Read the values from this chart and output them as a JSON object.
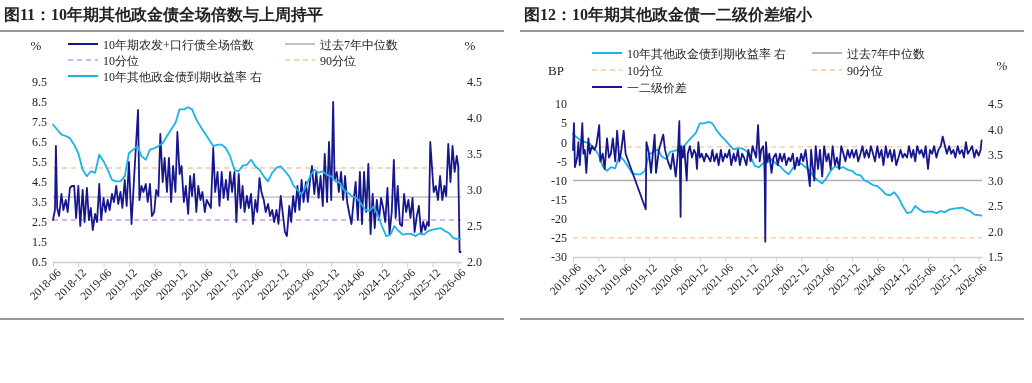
{
  "chart_data": [
    {
      "type": "line",
      "title": "图11：10年期其他政金债全场倍数与上周持平",
      "ylabel": "%",
      "y2label": "%",
      "legend": "top",
      "line_style": "solid",
      "marker": "none",
      "xlim": [
        "2018-06-01",
        "2026-06-25"
      ],
      "xticks": [
        {
          "value": "2018-06-01",
          "label": "2018-06"
        },
        {
          "value": "2018-12-01",
          "label": "2018-12"
        },
        {
          "value": "2019-06-01",
          "label": "2019-06"
        },
        {
          "value": "2019-12-01",
          "label": "2019-12"
        },
        {
          "value": "2020-06-01",
          "label": "2020-06"
        },
        {
          "value": "2020-12-01",
          "label": "2020-12"
        },
        {
          "value": "2021-06-01",
          "label": "2021-06"
        },
        {
          "value": "2021-12-01",
          "label": "2021-12"
        },
        {
          "value": "2022-06-01",
          "label": "2022-06"
        },
        {
          "value": "2022-12-01",
          "label": "2022-12"
        },
        {
          "value": "2023-06-01",
          "label": "2023-06"
        },
        {
          "value": "2023-12-01",
          "label": "2023-12"
        },
        {
          "value": "2024-06-01",
          "label": "2024-06"
        },
        {
          "value": "2024-12-01",
          "label": "2024-12"
        },
        {
          "value": "2025-06-01",
          "label": "2025-06"
        },
        {
          "value": "2025-12-01",
          "label": "2025-12"
        },
        {
          "value": "2026-06-01",
          "label": "2026-06"
        }
      ],
      "ylim": [
        0.5,
        9.5
      ],
      "yticks": [
        0.5,
        1.5,
        2.5,
        3.5,
        4.5,
        5.5,
        6.5,
        7.5,
        8.5,
        9.5
      ],
      "y2lim": [
        2.0,
        4.5
      ],
      "y2ticks": [
        {
          "value": 2,
          "label": "2.0"
        },
        2.5,
        {
          "value": 3,
          "label": "3.0"
        },
        3.5,
        {
          "value": 4,
          "label": "4.0"
        },
        4.5
      ],
      "ref_lines": [
        {
          "axis": "y",
          "value": 3.75,
          "label": "过去7年中位数",
          "color": "#c0c0c0",
          "line_style": "solid"
        },
        {
          "axis": "y",
          "value": 2.6,
          "label": "10分位",
          "color": "#c99cf2",
          "line_style": "dashed"
        },
        {
          "axis": "y",
          "value": 5.2,
          "label": "90分位",
          "color": "#f9c6a0",
          "line_style": "dashed"
        }
      ],
      "series": [
        {
          "name": "10年期农发+口行债全场倍数",
          "color": "#16168e",
          "x": [
            "2018-06-01",
            "2018-06-15",
            "2018-06-22",
            "2018-07-01",
            "2018-07-15",
            "2018-08-01",
            "2018-08-15",
            "2018-09-01",
            "2018-09-15",
            "2018-10-01",
            "2018-10-15",
            "2018-11-01",
            "2018-11-15",
            "2018-12-01",
            "2018-12-15",
            "2019-01-01",
            "2019-01-15",
            "2019-02-01",
            "2019-02-15",
            "2019-03-01",
            "2019-03-15",
            "2019-04-01",
            "2019-04-15",
            "2019-05-01",
            "2019-05-15",
            "2019-06-01",
            "2019-06-15",
            "2019-07-01",
            "2019-07-15",
            "2019-08-01",
            "2019-08-15",
            "2019-09-01",
            "2019-09-15",
            "2019-10-01",
            "2019-10-15",
            "2019-11-01",
            "2019-11-15",
            "2019-12-01",
            "2019-12-20",
            "2020-01-10",
            "2020-02-05",
            "2020-02-15",
            "2020-03-01",
            "2020-03-15",
            "2020-04-01",
            "2020-04-15",
            "2020-05-01",
            "2020-05-15",
            "2020-06-01",
            "2020-06-15",
            "2020-07-01",
            "2020-07-15",
            "2020-08-01",
            "2020-08-15",
            "2020-09-01",
            "2020-09-15",
            "2020-10-01",
            "2020-10-15",
            "2020-11-01",
            "2020-11-15",
            "2020-12-01",
            "2020-12-15",
            "2021-01-01",
            "2021-01-15",
            "2021-02-01",
            "2021-02-15",
            "2021-03-01",
            "2021-03-15",
            "2021-04-01",
            "2021-04-15",
            "2021-05-01",
            "2021-05-15",
            "2021-06-01",
            "2021-06-15",
            "2021-07-15",
            "2021-08-01",
            "2021-08-15",
            "2021-09-01",
            "2021-09-15",
            "2021-10-01",
            "2021-10-15",
            "2021-11-01",
            "2021-11-15",
            "2021-12-01",
            "2021-12-15",
            "2022-01-01",
            "2022-01-15",
            "2022-02-01",
            "2022-02-15",
            "2022-03-01",
            "2022-03-15",
            "2022-04-01",
            "2022-04-15",
            "2022-05-01",
            "2022-05-15",
            "2022-06-01",
            "2022-06-15",
            "2022-07-01",
            "2022-07-15",
            "2022-08-01",
            "2022-08-15",
            "2022-09-01",
            "2022-09-15",
            "2022-10-01",
            "2022-10-15",
            "2022-11-01",
            "2022-11-15",
            "2022-12-01",
            "2022-12-15",
            "2023-01-01",
            "2023-01-15",
            "2023-02-01",
            "2023-02-15",
            "2023-03-01",
            "2023-03-15",
            "2023-04-01",
            "2023-04-15",
            "2023-05-01",
            "2023-05-15",
            "2023-06-01",
            "2023-06-15",
            "2023-07-01",
            "2023-07-15",
            "2023-08-01",
            "2023-08-15",
            "2023-09-01",
            "2023-09-15",
            "2023-10-01",
            "2023-10-15",
            "2023-11-01",
            "2023-11-15",
            "2023-12-01",
            "2023-12-15",
            "2023-12-25",
            "2024-01-10",
            "2024-01-25",
            "2024-02-10",
            "2024-02-25",
            "2024-03-10",
            "2024-03-25",
            "2024-04-10",
            "2024-04-25",
            "2024-05-10",
            "2024-05-25",
            "2024-06-10",
            "2024-06-25",
            "2024-07-10",
            "2024-07-25",
            "2024-08-10",
            "2024-08-25",
            "2024-09-10",
            "2024-09-25",
            "2024-10-10",
            "2024-10-25",
            "2024-11-10",
            "2024-11-25",
            "2024-12-10",
            "2024-12-25",
            "2025-01-10",
            "2025-01-25",
            "2025-02-10",
            "2025-02-25",
            "2025-03-10",
            "2025-03-25",
            "2025-04-10",
            "2025-04-25",
            "2025-05-10",
            "2025-05-25",
            "2025-06-10",
            "2025-06-25",
            "2025-07-10",
            "2025-07-25",
            "2025-08-10",
            "2025-08-25",
            "2025-09-10",
            "2025-09-25",
            "2025-10-10",
            "2025-10-25",
            "2025-11-05",
            "2025-11-15",
            "2025-12-10",
            "2025-12-25",
            "2026-01-10",
            "2026-01-25",
            "2026-02-10",
            "2026-02-25",
            "2026-03-10",
            "2026-03-25",
            "2026-04-10",
            "2026-04-25",
            "2026-05-10",
            "2026-05-25",
            "2026-06-05",
            "2026-06-15",
            "2026-06-22"
          ],
          "values": [
            2.6,
            3.1,
            6.3,
            3.2,
            2.8,
            3.9,
            3.1,
            3.6,
            3.0,
            4.2,
            4.3,
            4.3,
            2.7,
            4.3,
            2.3,
            4.1,
            2.5,
            4.2,
            2.6,
            3.2,
            2.1,
            2.9,
            2.5,
            4.4,
            2.6,
            3.7,
            3.0,
            3.6,
            3.1,
            3.9,
            3.5,
            4.3,
            3.4,
            4.0,
            3.2,
            4.6,
            3.3,
            5.5,
            2.4,
            5.0,
            8.1,
            3.6,
            4.3,
            4.0,
            4.4,
            3.5,
            4.4,
            2.8,
            3.0,
            4.1,
            3.8,
            6.9,
            4.5,
            5.7,
            4.0,
            5.7,
            3.5,
            5.3,
            4.0,
            7.0,
            4.9,
            5.3,
            3.5,
            4.3,
            2.9,
            4.8,
            3.8,
            4.9,
            3.0,
            4.3,
            3.6,
            4.0,
            3.0,
            3.6,
            3.2,
            6.2,
            4.0,
            5.0,
            3.3,
            5.0,
            3.7,
            4.6,
            3.6,
            5.0,
            4.0,
            5.0,
            2.5,
            4.9,
            3.2,
            4.3,
            3.0,
            3.8,
            3.2,
            3.9,
            2.4,
            3.6,
            3.0,
            4.7,
            4.0,
            3.6,
            3.0,
            3.4,
            2.8,
            3.1,
            2.5,
            3.1,
            2.4,
            3.8,
            3.0,
            2.0,
            1.8,
            3.3,
            2.5,
            3.8,
            3.0,
            4.3,
            3.1,
            4.6,
            3.5,
            4.5,
            3.5,
            4.6,
            5.3,
            3.9,
            5.0,
            3.7,
            4.8,
            3.3,
            5.9,
            3.5,
            6.5,
            3.6,
            8.5,
            4.6,
            5.0,
            4.0,
            5.0,
            3.6,
            4.8,
            3.5,
            2.9,
            2.4,
            3.5,
            4.5,
            2.6,
            5.0,
            2.4,
            5.0,
            3.0,
            5.4,
            1.9,
            3.9,
            2.2,
            3.6,
            2.6,
            3.7,
            3.2,
            2.5,
            4.2,
            1.9,
            3.0,
            5.6,
            2.7,
            4.3,
            2.4,
            2.3,
            3.9,
            3.0,
            3.6,
            2.7,
            3.7,
            2.0,
            2.8,
            3.3,
            1.9,
            2.5,
            2.1,
            2.5,
            2.3,
            6.5,
            4.0,
            4.3,
            3.6,
            4.8,
            3.6,
            4.3,
            3.8,
            6.4,
            4.5,
            6.3,
            5.0,
            5.8,
            5.3,
            1.0,
            1.0
          ]
        },
        {
          "name": "10年其他政金债到期收益率 右",
          "color": "#1ab2ea",
          "axis": "y2",
          "x": [
            "2018-06-01",
            "2018-07-01",
            "2018-08-01",
            "2018-09-01",
            "2018-10-01",
            "2018-11-01",
            "2018-12-01",
            "2019-01-01",
            "2019-02-01",
            "2019-03-01",
            "2019-04-01",
            "2019-05-01",
            "2019-06-01",
            "2019-07-01",
            "2019-08-01",
            "2019-09-01",
            "2019-10-01",
            "2019-11-01",
            "2019-12-01",
            "2020-01-01",
            "2020-02-01",
            "2020-03-01",
            "2020-04-01",
            "2020-05-01",
            "2020-06-01",
            "2020-07-01",
            "2020-08-01",
            "2020-09-01",
            "2020-10-01",
            "2020-11-01",
            "2020-12-01",
            "2021-01-01",
            "2021-02-01",
            "2021-03-01",
            "2021-04-01",
            "2021-05-01",
            "2021-06-01",
            "2021-07-01",
            "2021-08-01",
            "2021-09-01",
            "2021-10-01",
            "2021-11-01",
            "2021-12-01",
            "2022-01-01",
            "2022-02-01",
            "2022-03-01",
            "2022-04-01",
            "2022-05-01",
            "2022-06-01",
            "2022-07-01",
            "2022-08-01",
            "2022-09-01",
            "2022-10-01",
            "2022-11-01",
            "2022-12-01",
            "2023-01-01",
            "2023-02-01",
            "2023-03-01",
            "2023-04-01",
            "2023-05-01",
            "2023-06-01",
            "2023-07-01",
            "2023-08-01",
            "2023-09-01",
            "2023-10-01",
            "2023-11-01",
            "2023-12-01",
            "2024-01-01",
            "2024-02-01",
            "2024-03-01",
            "2024-04-01",
            "2024-05-01",
            "2024-06-01",
            "2024-07-01",
            "2024-08-01",
            "2024-09-01",
            "2024-10-01",
            "2024-11-01",
            "2024-12-01",
            "2025-01-01",
            "2025-02-01",
            "2025-03-01",
            "2025-04-01",
            "2025-05-01",
            "2025-06-01",
            "2025-07-01",
            "2025-08-01",
            "2025-09-01",
            "2025-10-01",
            "2025-11-01",
            "2025-12-01",
            "2026-01-01",
            "2026-02-01",
            "2026-03-01",
            "2026-04-01",
            "2026-05-01",
            "2026-06-01",
            "2026-06-20"
          ],
          "values": [
            3.91,
            3.84,
            3.77,
            3.75,
            3.72,
            3.63,
            3.51,
            3.28,
            3.19,
            3.26,
            3.24,
            3.49,
            3.4,
            3.28,
            3.14,
            3.12,
            3.12,
            3.19,
            3.51,
            3.56,
            3.61,
            3.47,
            3.42,
            3.56,
            3.58,
            3.61,
            3.65,
            3.75,
            3.84,
            3.93,
            4.12,
            4.12,
            4.15,
            4.12,
            3.98,
            3.88,
            3.79,
            3.7,
            3.61,
            3.63,
            3.63,
            3.58,
            3.47,
            3.28,
            3.26,
            3.34,
            3.35,
            3.42,
            3.33,
            3.28,
            3.19,
            3.12,
            3.24,
            3.31,
            3.33,
            3.26,
            3.19,
            3.07,
            3.0,
            2.94,
            3.05,
            3.19,
            3.28,
            3.24,
            3.26,
            3.21,
            3.19,
            3.12,
            3.1,
            3.0,
            2.96,
            2.91,
            2.89,
            2.82,
            2.73,
            2.71,
            2.77,
            2.66,
            2.5,
            2.36,
            2.38,
            2.5,
            2.43,
            2.38,
            2.39,
            2.39,
            2.36,
            2.4,
            2.38,
            2.43,
            2.45,
            2.46,
            2.47,
            2.43,
            2.4,
            2.33,
            2.32,
            2.31
          ]
        }
      ]
    },
    {
      "type": "line",
      "title": "图12：10年期其他政金债一二级价差缩小",
      "ylabel": "BP",
      "y2label": "%",
      "legend": "top",
      "line_style": "solid",
      "marker": "none",
      "xlim": [
        "2018-06-01",
        "2026-06-25"
      ],
      "xticks": [
        {
          "value": "2018-06-01",
          "label": "2018-06"
        },
        {
          "value": "2018-12-01",
          "label": "2018-12"
        },
        {
          "value": "2019-06-01",
          "label": "2019-06"
        },
        {
          "value": "2019-12-01",
          "label": "2019-12"
        },
        {
          "value": "2020-06-01",
          "label": "2020-06"
        },
        {
          "value": "2020-12-01",
          "label": "2020-12"
        },
        {
          "value": "2021-06-01",
          "label": "2021-06"
        },
        {
          "value": "2021-12-01",
          "label": "2021-12"
        },
        {
          "value": "2022-06-01",
          "label": "2022-06"
        },
        {
          "value": "2022-12-01",
          "label": "2022-12"
        },
        {
          "value": "2023-06-01",
          "label": "2023-06"
        },
        {
          "value": "2023-12-01",
          "label": "2023-12"
        },
        {
          "value": "2024-06-01",
          "label": "2024-06"
        },
        {
          "value": "2024-12-01",
          "label": "2024-12"
        },
        {
          "value": "2025-06-01",
          "label": "2025-06"
        },
        {
          "value": "2025-12-01",
          "label": "2025-12"
        },
        {
          "value": "2026-06-01",
          "label": "2026-06"
        }
      ],
      "ylim": [
        -30,
        10
      ],
      "yticks": [
        -30,
        -25,
        -20,
        -15,
        -10,
        -5,
        0,
        5,
        10
      ],
      "y2lim": [
        1.5,
        4.5
      ],
      "y2ticks": [
        1.5,
        {
          "value": 2,
          "label": "2.0"
        },
        2.5,
        {
          "value": 3,
          "label": "3.0"
        },
        3.5,
        {
          "value": 4,
          "label": "4.0"
        },
        4.5
      ],
      "ref_lines": [
        {
          "axis": "y",
          "value": -10,
          "label": "过去7年中位数",
          "color": "#b0b0b0",
          "line_style": "solid"
        },
        {
          "axis": "y",
          "value": -25,
          "label": "10分位",
          "color": "#f9c6a0",
          "line_style": "dashed"
        },
        {
          "axis": "y",
          "value": -1.2,
          "label": "90分位",
          "color": "#f9c6a0",
          "line_style": "dashed"
        }
      ],
      "series": [
        {
          "name": "10年其他政金债到期收益率 右",
          "color": "#1ab2ea",
          "axis": "y2",
          "x": [
            "2018-06-01",
            "2018-07-01",
            "2018-08-01",
            "2018-09-01",
            "2018-10-01",
            "2018-11-01",
            "2018-12-01",
            "2019-01-01",
            "2019-02-01",
            "2019-03-01",
            "2019-04-01",
            "2019-05-01",
            "2019-06-01",
            "2019-07-01",
            "2019-08-01",
            "2019-09-01",
            "2019-10-01",
            "2019-11-01",
            "2019-12-01",
            "2020-01-01",
            "2020-02-01",
            "2020-03-01",
            "2020-04-01",
            "2020-05-01",
            "2020-06-01",
            "2020-07-01",
            "2020-08-01",
            "2020-09-01",
            "2020-10-01",
            "2020-11-01",
            "2020-12-01",
            "2021-01-01",
            "2021-02-01",
            "2021-03-01",
            "2021-04-01",
            "2021-05-01",
            "2021-06-01",
            "2021-07-01",
            "2021-08-01",
            "2021-09-01",
            "2021-10-01",
            "2021-11-01",
            "2021-12-01",
            "2022-01-01",
            "2022-02-01",
            "2022-03-01",
            "2022-04-01",
            "2022-05-01",
            "2022-06-01",
            "2022-07-01",
            "2022-08-01",
            "2022-09-01",
            "2022-10-01",
            "2022-11-01",
            "2022-12-01",
            "2023-01-01",
            "2023-02-01",
            "2023-03-01",
            "2023-04-01",
            "2023-05-01",
            "2023-06-01",
            "2023-07-01",
            "2023-08-01",
            "2023-09-01",
            "2023-10-01",
            "2023-11-01",
            "2023-12-01",
            "2024-01-01",
            "2024-02-01",
            "2024-03-01",
            "2024-04-01",
            "2024-05-01",
            "2024-06-01",
            "2024-07-01",
            "2024-08-01",
            "2024-09-01",
            "2024-10-01",
            "2024-11-01",
            "2024-12-01",
            "2025-01-01",
            "2025-02-01",
            "2025-03-01",
            "2025-04-01",
            "2025-05-01",
            "2025-06-01",
            "2025-07-01",
            "2025-08-01",
            "2025-09-01",
            "2025-10-01",
            "2025-11-01",
            "2025-12-01",
            "2026-01-01",
            "2026-02-01",
            "2026-03-01",
            "2026-04-01",
            "2026-05-01",
            "2026-06-01",
            "2026-06-20"
          ],
          "values": [
            3.91,
            3.84,
            3.77,
            3.75,
            3.72,
            3.63,
            3.51,
            3.28,
            3.19,
            3.26,
            3.24,
            3.49,
            3.4,
            3.28,
            3.14,
            3.12,
            3.12,
            3.19,
            3.51,
            3.56,
            3.61,
            3.47,
            3.42,
            3.56,
            3.58,
            3.61,
            3.65,
            3.75,
            3.84,
            3.93,
            4.12,
            4.12,
            4.15,
            4.12,
            3.98,
            3.88,
            3.79,
            3.7,
            3.61,
            3.63,
            3.63,
            3.58,
            3.47,
            3.28,
            3.26,
            3.34,
            3.35,
            3.42,
            3.33,
            3.28,
            3.19,
            3.12,
            3.24,
            3.31,
            3.33,
            3.26,
            3.19,
            3.07,
            3.0,
            2.94,
            3.05,
            3.19,
            3.28,
            3.24,
            3.26,
            3.21,
            3.19,
            3.12,
            3.1,
            3.0,
            2.96,
            2.91,
            2.89,
            2.82,
            2.73,
            2.71,
            2.77,
            2.66,
            2.5,
            2.36,
            2.38,
            2.5,
            2.43,
            2.38,
            2.39,
            2.39,
            2.36,
            2.4,
            2.38,
            2.43,
            2.45,
            2.46,
            2.47,
            2.43,
            2.4,
            2.33,
            2.32,
            2.31
          ]
        },
        {
          "name": "一二级价差",
          "color": "#16168e",
          "x": [
            "2018-06-01",
            "2018-06-08",
            "2018-06-15",
            "2018-07-01",
            "2018-07-10",
            "2018-07-20",
            "2018-08-07",
            "2018-08-15",
            "2018-08-25",
            "2018-09-05",
            "2018-09-20",
            "2018-10-01",
            "2018-10-15",
            "2018-11-01",
            "2018-11-15",
            "2018-12-07",
            "2018-12-15",
            "2019-01-01",
            "2019-01-15",
            "2019-02-01",
            "2019-02-15",
            "2019-03-01",
            "2019-03-15",
            "2019-04-01",
            "2019-04-15",
            "2019-05-01",
            "2019-05-15",
            "2019-06-01",
            "2019-06-15",
            "2019-11-07",
            "2019-11-12",
            "2019-12-01",
            "2019-12-15",
            "2020-01-10",
            "2020-01-20",
            "2020-02-10",
            "2020-03-12",
            "2020-03-25",
            "2020-04-15",
            "2020-05-05",
            "2020-05-20",
            "2020-06-10",
            "2020-06-25",
            "2020-07-06",
            "2020-07-15",
            "2020-07-20",
            "2020-08-01",
            "2020-08-10",
            "2020-08-28",
            "2020-09-05",
            "2020-09-20",
            "2020-10-05",
            "2020-10-20",
            "2020-11-01",
            "2020-11-10",
            "2020-11-20",
            "2020-12-01",
            "2020-12-15",
            "2021-01-01",
            "2021-01-15",
            "2021-02-01",
            "2021-02-15",
            "2021-03-01",
            "2021-03-15",
            "2021-04-01",
            "2021-04-15",
            "2021-05-01",
            "2021-05-15",
            "2021-06-01",
            "2021-06-15",
            "2021-07-01",
            "2021-07-15",
            "2021-08-01",
            "2021-08-15",
            "2021-09-01",
            "2021-09-15",
            "2021-10-01",
            "2021-10-15",
            "2021-11-01",
            "2021-11-15",
            "2021-12-01",
            "2021-12-15",
            "2022-01-10",
            "2022-01-24",
            "2022-02-05",
            "2022-02-15",
            "2022-03-01",
            "2022-03-10",
            "2022-03-13",
            "2022-03-17",
            "2022-03-22",
            "2022-04-01",
            "2022-04-15",
            "2022-05-01",
            "2022-05-15",
            "2022-06-01",
            "2022-06-15",
            "2022-07-01",
            "2022-07-15",
            "2022-08-01",
            "2022-08-15",
            "2022-09-01",
            "2022-09-15",
            "2022-10-01",
            "2022-10-15",
            "2022-11-01",
            "2022-11-15",
            "2022-12-01",
            "2022-12-15",
            "2023-01-01",
            "2023-02-01",
            "2023-02-10",
            "2023-02-20",
            "2023-03-05",
            "2023-03-15",
            "2023-04-01",
            "2023-04-15",
            "2023-05-01",
            "2023-05-15",
            "2023-06-01",
            "2023-06-15",
            "2023-07-01",
            "2023-07-15",
            "2023-08-01",
            "2023-08-15",
            "2023-09-01",
            "2023-09-15",
            "2023-10-01",
            "2023-10-15",
            "2023-11-01",
            "2023-11-15",
            "2023-12-01",
            "2023-12-15",
            "2024-01-01",
            "2024-01-15",
            "2024-02-01",
            "2024-02-15",
            "2024-03-01",
            "2024-03-15",
            "2024-04-01",
            "2024-04-15",
            "2024-05-01",
            "2024-05-15",
            "2024-06-01",
            "2024-06-15",
            "2024-07-01",
            "2024-07-15",
            "2024-08-01",
            "2024-08-15",
            "2024-09-01",
            "2024-09-15",
            "2024-10-01",
            "2024-10-15",
            "2024-11-01",
            "2024-11-15",
            "2024-12-01",
            "2024-12-15",
            "2025-01-01",
            "2025-01-15",
            "2025-02-01",
            "2025-02-15",
            "2025-03-01",
            "2025-03-15",
            "2025-04-01",
            "2025-04-15",
            "2025-05-01",
            "2025-05-15",
            "2025-06-01",
            "2025-06-15",
            "2025-07-01",
            "2025-07-15",
            "2025-08-01",
            "2025-08-15",
            "2025-09-01",
            "2025-09-15",
            "2025-10-01",
            "2025-10-15",
            "2025-11-01",
            "2025-11-15",
            "2025-12-01",
            "2025-12-15",
            "2026-01-01",
            "2026-01-15",
            "2026-02-01",
            "2026-02-15",
            "2026-03-01",
            "2026-03-15",
            "2026-04-01",
            "2026-04-15",
            "2026-05-01",
            "2026-05-15",
            "2026-06-01",
            "2026-06-15",
            "2026-06-22"
          ],
          "values": [
            -2,
            5,
            -6.5,
            -4,
            0,
            -6,
            5,
            -3,
            -2,
            -8,
            1,
            -3,
            -1,
            -2,
            -1,
            4.5,
            -5,
            -3,
            -7,
            1,
            -4,
            -3,
            1,
            -5,
            3,
            -5,
            -2,
            3,
            -3,
            -17.5,
            0,
            -3,
            -8,
            2,
            -8,
            -2,
            2,
            -2,
            -5,
            -7,
            -3,
            -9,
            -3,
            5.5,
            -19.5,
            -1,
            -4,
            -1,
            -10,
            -3,
            -1,
            -4,
            -2,
            -3,
            -7,
            0,
            -4,
            -3,
            -5,
            -3,
            -4,
            -5,
            -2,
            -5,
            -3,
            -6,
            -2,
            -5,
            -3,
            -4,
            -2,
            -6,
            -3,
            -5,
            -2,
            -6,
            -3,
            -4,
            -6,
            -2,
            -5,
            -1,
            -4,
            4.5,
            -5,
            -2,
            -1,
            -5,
            -10,
            -26,
            0,
            -5,
            -3,
            -8,
            -4,
            -3,
            -6,
            -3,
            -5,
            -3,
            -6,
            -4,
            -5,
            -3,
            -7,
            -4,
            -6,
            -3,
            -5,
            -2,
            -11.5,
            -2,
            -6,
            -10,
            -1,
            -7,
            -2,
            -9,
            -1,
            -5,
            -3,
            -7,
            -1,
            -6,
            -4,
            -7,
            -1,
            -3,
            -5,
            -2,
            -4,
            -2,
            -4,
            -2,
            -5,
            -3,
            -1,
            -4,
            -2,
            -4,
            -1,
            -3,
            -5,
            -1,
            -4,
            -2,
            -6,
            -1,
            -4,
            -2,
            -5,
            -2,
            -6,
            -4,
            -2,
            -4,
            -3,
            -4,
            -1,
            -4,
            -2,
            -5,
            -1,
            -3,
            -2,
            -4,
            -1,
            -7,
            -2,
            -3,
            -1,
            -4,
            -2,
            -1,
            1.5,
            -1,
            -3,
            -1,
            -3,
            -2,
            -4,
            -1,
            -3,
            -2,
            -4,
            0,
            -3,
            -2,
            -1,
            -4,
            -2,
            -3.5,
            -2,
            0.5
          ]
        }
      ]
    }
  ]
}
